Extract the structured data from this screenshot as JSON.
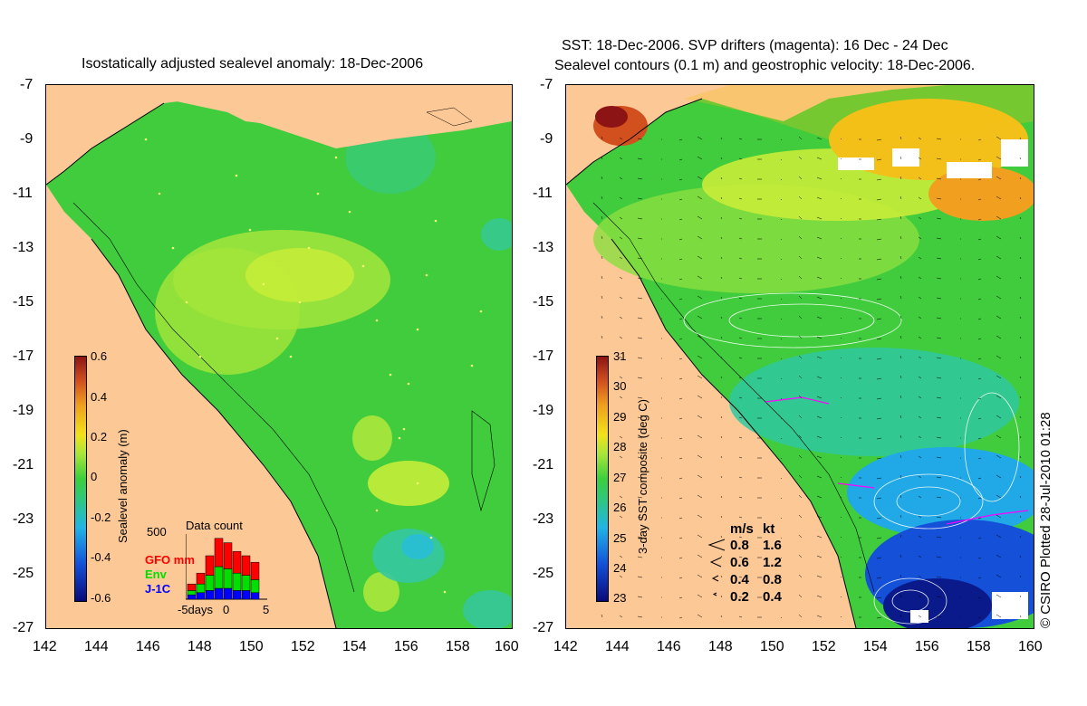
{
  "left_panel": {
    "title": "Isostatically adjusted sealevel anomaly: 18-Dec-2006",
    "colorbar": {
      "label": "Sealevel anomaly (m)",
      "ticks": [
        "0.6",
        "0.4",
        "0.2",
        "0",
        "-0.2",
        "-0.4",
        "-0.6"
      ],
      "colors": [
        "#0a0a7a",
        "#1450d8",
        "#21b4e6",
        "#2fc87a",
        "#3ccf3c",
        "#a8e63a",
        "#f2e21a",
        "#f0a01e",
        "#d2501e",
        "#8c1414"
      ]
    },
    "data_count": {
      "title": "Data count",
      "ymax_label": "500",
      "series": [
        {
          "name": "GFO mm",
          "color": "#ff0000",
          "values": [
            30,
            50,
            90,
            130,
            120,
            100,
            90,
            80
          ]
        },
        {
          "name": "Env",
          "color": "#00e000",
          "values": [
            20,
            40,
            70,
            100,
            90,
            80,
            70,
            60
          ]
        },
        {
          "name": "J-1C",
          "color": "#0000ff",
          "values": [
            20,
            30,
            40,
            50,
            50,
            40,
            40,
            30
          ]
        }
      ],
      "xlabel": "-5days",
      "x_ticks": [
        "0",
        "5"
      ]
    }
  },
  "right_panel": {
    "title_line1": "SST: 18-Dec-2006. SVP drifters (magenta): 16 Dec - 24 Dec",
    "title_line2": "Sealevel contours (0.1 m) and geostrophic velocity: 18-Dec-2006.",
    "colorbar": {
      "label": "3-day SST composite (deg C)",
      "ticks": [
        "31",
        "30",
        "29",
        "28",
        "27",
        "26",
        "25",
        "24",
        "23"
      ],
      "colors": [
        "#0a0a7a",
        "#1450d8",
        "#21b4e6",
        "#2fc87a",
        "#3ccf3c",
        "#a8e63a",
        "#f2e21a",
        "#f0a01e",
        "#d2501e",
        "#8c1414"
      ]
    },
    "velocity_legend": {
      "header_ms": "m/s",
      "header_kt": "kt",
      "rows": [
        {
          "ms": "0.8",
          "kt": "1.6"
        },
        {
          "ms": "0.6",
          "kt": "1.2"
        },
        {
          "ms": "0.4",
          "kt": "0.8"
        },
        {
          "ms": "0.2",
          "kt": "0.4"
        }
      ]
    }
  },
  "axes": {
    "lat_ticks": [
      "-7",
      "-9",
      "-11",
      "-13",
      "-15",
      "-17",
      "-19",
      "-21",
      "-23",
      "-25",
      "-27"
    ],
    "lon_ticks": [
      "142",
      "144",
      "146",
      "148",
      "150",
      "152",
      "154",
      "156",
      "158",
      "160"
    ]
  },
  "copyright": "© CSIRO Plotted 28-Jul-2010 01:28",
  "colors": {
    "land": "#fcc896",
    "ocean_low": "#3ccf3c",
    "ocean_high": "#d8f040"
  }
}
